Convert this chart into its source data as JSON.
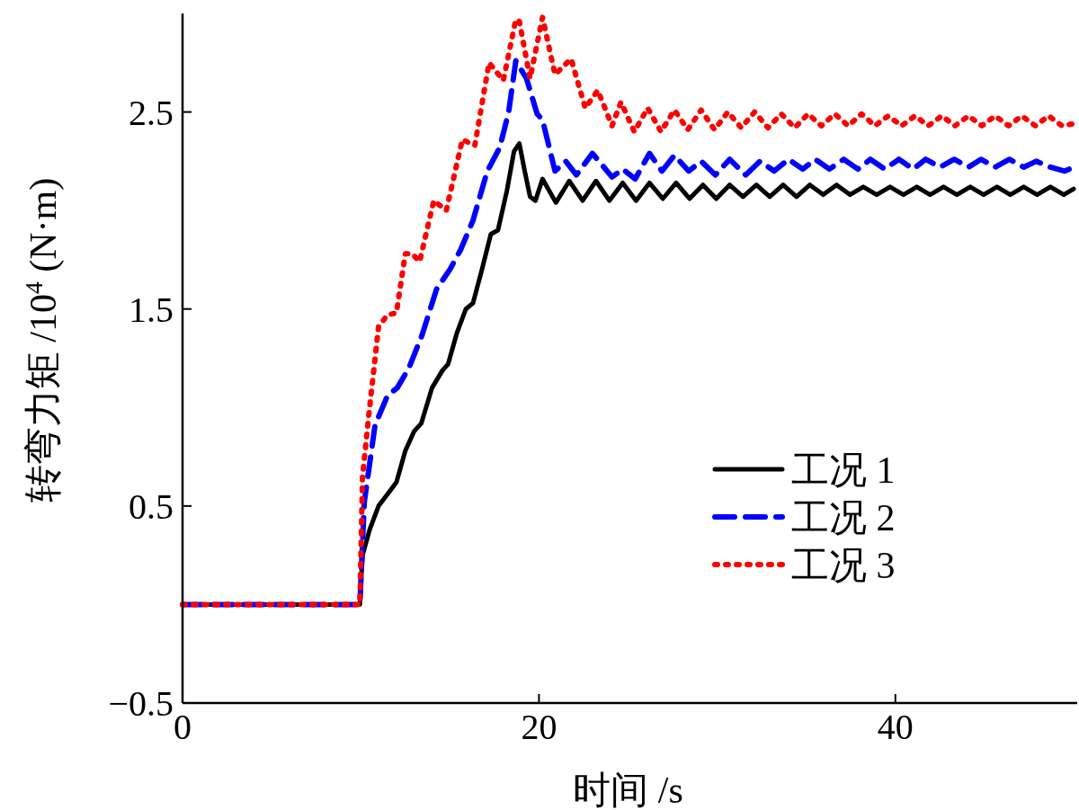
{
  "chart_data": {
    "type": "line",
    "xlabel": "时间 /s",
    "ylabel": "转弯力矩 /10$^{4}$ (N·m)",
    "xlim": [
      0,
      50
    ],
    "xticks": [
      0,
      20,
      40
    ],
    "ylim": [
      -0.5,
      3.0
    ],
    "yticks": [
      -0.5,
      0.5,
      1.5,
      2.5
    ],
    "legend": "bottom right",
    "series": [
      {
        "name": "工况 1",
        "color": "#000000",
        "line_style": "solid",
        "x": [
          0,
          9.95,
          10.1,
          10.5,
          11.0,
          11.5,
          12.0,
          12.5,
          13.0,
          13.4,
          14.0,
          14.6,
          14.9,
          15.4,
          15.9,
          16.3,
          16.8,
          17.3,
          17.7,
          18.2,
          18.6,
          18.9,
          19.2,
          19.5,
          19.8,
          20.2,
          20.95,
          21.7,
          22.45,
          23.2,
          23.95,
          24.7,
          25.45,
          26.2,
          26.95,
          27.7,
          28.45,
          29.2,
          29.95,
          30.7,
          31.45,
          32.2,
          32.95,
          33.7,
          34.45,
          35.2,
          35.95,
          36.7,
          37.45,
          38.2,
          38.95,
          39.7,
          40.45,
          41.2,
          41.95,
          42.7,
          43.45,
          44.2,
          44.95,
          45.7,
          46.45,
          47.2,
          47.95,
          48.7,
          49.45,
          50
        ],
        "values": [
          0,
          0,
          0.25,
          0.38,
          0.5,
          0.56,
          0.62,
          0.78,
          0.88,
          0.92,
          1.1,
          1.19,
          1.22,
          1.38,
          1.5,
          1.53,
          1.7,
          1.88,
          1.9,
          2.1,
          2.3,
          2.34,
          2.2,
          2.07,
          2.05,
          2.16,
          2.04,
          2.15,
          2.05,
          2.15,
          2.05,
          2.14,
          2.05,
          2.14,
          2.06,
          2.14,
          2.06,
          2.13,
          2.06,
          2.13,
          2.07,
          2.13,
          2.07,
          2.13,
          2.07,
          2.13,
          2.08,
          2.13,
          2.08,
          2.12,
          2.08,
          2.12,
          2.08,
          2.12,
          2.08,
          2.12,
          2.08,
          2.12,
          2.08,
          2.12,
          2.08,
          2.12,
          2.08,
          2.12,
          2.08,
          2.11
        ]
      },
      {
        "name": "工况 2",
        "color": "#0000ff",
        "line_style": "dashed",
        "x": [
          0,
          9.95,
          10.2,
          10.8,
          11.5,
          12.05,
          12.7,
          13.45,
          14.25,
          15.0,
          15.6,
          16.3,
          17.1,
          17.8,
          18.3,
          18.7,
          19.3,
          19.9,
          20.2,
          20.9,
          21.5,
          22.1,
          23.0,
          24.1,
          24.7,
          25.4,
          26.2,
          26.9,
          27.6,
          28.4,
          29.1,
          29.9,
          30.7,
          31.6,
          32.4,
          33.2,
          34.0,
          34.8,
          35.5,
          36.3,
          37.1,
          37.9,
          38.6,
          39.4,
          40.2,
          41.0,
          41.7,
          42.5,
          43.3,
          44.1,
          44.8,
          45.6,
          46.4,
          47.2,
          47.9,
          48.7,
          49.5,
          50
        ],
        "values": [
          0,
          0,
          0.52,
          0.91,
          1.06,
          1.1,
          1.2,
          1.37,
          1.6,
          1.7,
          1.8,
          1.95,
          2.2,
          2.32,
          2.5,
          2.76,
          2.67,
          2.49,
          2.46,
          2.2,
          2.25,
          2.18,
          2.29,
          2.17,
          2.21,
          2.16,
          2.29,
          2.2,
          2.28,
          2.2,
          2.25,
          2.18,
          2.26,
          2.18,
          2.25,
          2.2,
          2.26,
          2.21,
          2.26,
          2.21,
          2.26,
          2.21,
          2.26,
          2.21,
          2.26,
          2.21,
          2.26,
          2.22,
          2.26,
          2.22,
          2.26,
          2.22,
          2.26,
          2.22,
          2.25,
          2.22,
          2.2,
          2.22
        ]
      },
      {
        "name": "工况 3",
        "color": "#ff0000",
        "line_style": "dotted",
        "x": [
          0,
          9.95,
          10.1,
          10.45,
          11.0,
          11.5,
          12.0,
          12.5,
          12.9,
          13.3,
          14.1,
          14.8,
          15.7,
          16.4,
          17.2,
          18.0,
          18.7,
          18.9,
          19.5,
          20.2,
          20.9,
          21.8,
          22.6,
          23.3,
          24.1,
          24.6,
          25.35,
          26.1,
          26.85,
          27.6,
          28.35,
          29.1,
          29.85,
          30.6,
          31.35,
          32.1,
          32.85,
          33.6,
          34.35,
          35.1,
          35.85,
          36.6,
          37.35,
          38.1,
          38.85,
          39.6,
          40.35,
          41.1,
          41.85,
          42.6,
          43.35,
          44.1,
          44.85,
          45.6,
          46.35,
          47.1,
          47.85,
          48.6,
          49.35,
          50
        ],
        "values": [
          0,
          0,
          0.65,
          0.96,
          1.41,
          1.47,
          1.48,
          1.78,
          1.78,
          1.74,
          2.05,
          2.0,
          2.36,
          2.33,
          2.75,
          2.66,
          2.97,
          2.96,
          2.67,
          2.98,
          2.69,
          2.77,
          2.52,
          2.61,
          2.43,
          2.55,
          2.4,
          2.52,
          2.4,
          2.51,
          2.41,
          2.51,
          2.41,
          2.5,
          2.42,
          2.5,
          2.42,
          2.49,
          2.42,
          2.49,
          2.43,
          2.49,
          2.43,
          2.49,
          2.43,
          2.48,
          2.43,
          2.48,
          2.43,
          2.48,
          2.43,
          2.48,
          2.43,
          2.48,
          2.43,
          2.48,
          2.43,
          2.48,
          2.43,
          2.44
        ]
      }
    ]
  }
}
